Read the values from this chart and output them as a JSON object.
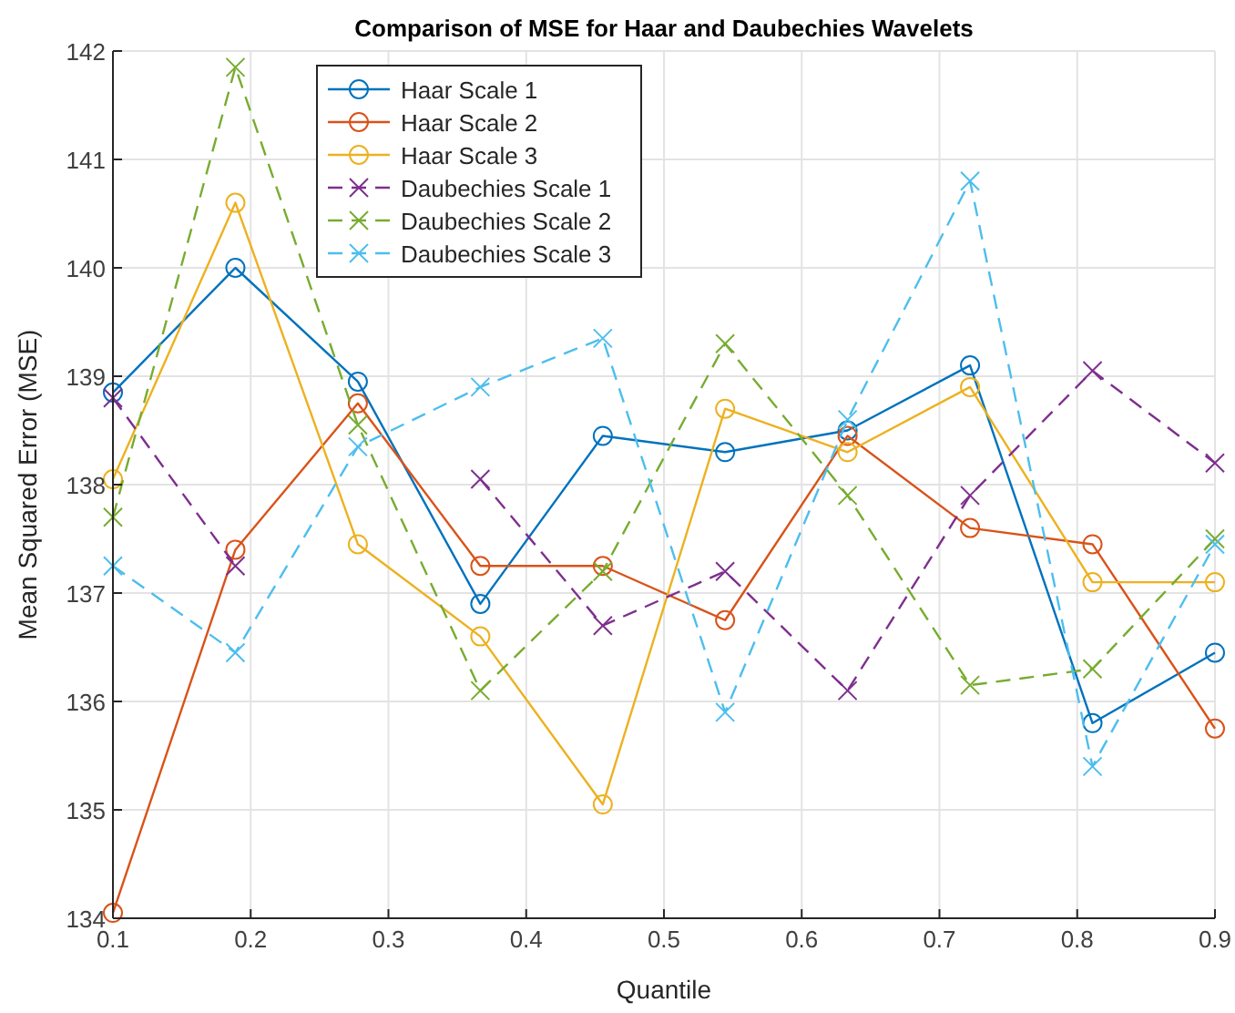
{
  "chart_data": {
    "type": "line",
    "title": "Comparison of MSE for Haar and Daubechies Wavelets",
    "xlabel": "Quantile",
    "ylabel": "Mean Squared Error (MSE)",
    "x": [
      0.1,
      0.1889,
      0.2778,
      0.3667,
      0.4556,
      0.5444,
      0.6333,
      0.7222,
      0.8111,
      0.9
    ],
    "xlim": [
      0.1,
      0.9
    ],
    "xticks": [
      0.1,
      0.2,
      0.3,
      0.4,
      0.5,
      0.6,
      0.7,
      0.8,
      0.9
    ],
    "ylim": [
      134,
      142
    ],
    "yticks": [
      134,
      135,
      136,
      137,
      138,
      139,
      140,
      141,
      142
    ],
    "grid": true,
    "legend": "top left",
    "series": [
      {
        "name": "Haar Scale 1",
        "color": "#0072bd",
        "marker": "circle",
        "line_style": "solid",
        "values": [
          138.85,
          140.0,
          138.95,
          136.9,
          138.45,
          138.3,
          138.5,
          139.1,
          135.8,
          136.45
        ]
      },
      {
        "name": "Haar Scale 2",
        "color": "#d95319",
        "marker": "circle",
        "line_style": "solid",
        "values": [
          134.05,
          137.4,
          138.75,
          137.25,
          137.25,
          136.75,
          138.45,
          137.6,
          137.45,
          135.75
        ]
      },
      {
        "name": "Haar Scale 3",
        "color": "#edb120",
        "marker": "circle",
        "line_style": "solid",
        "values": [
          138.05,
          140.6,
          137.45,
          136.6,
          135.05,
          138.7,
          138.3,
          138.9,
          137.1,
          137.1
        ]
      },
      {
        "name": "Daubechies Scale 1",
        "color": "#7e2f8e",
        "marker": "cross",
        "line_style": "dashed",
        "values": [
          138.8,
          137.25,
          null,
          138.05,
          136.7,
          137.2,
          136.1,
          137.9,
          139.05,
          138.2
        ]
      },
      {
        "name": "Daubechies Scale 2",
        "color": "#77ac30",
        "marker": "cross",
        "line_style": "dashed",
        "values": [
          137.7,
          141.85,
          138.55,
          136.1,
          137.2,
          139.3,
          137.9,
          136.15,
          136.3,
          137.5
        ]
      },
      {
        "name": "Daubechies Scale 3",
        "color": "#4dbeee",
        "marker": "cross",
        "line_style": "dashed",
        "values": [
          137.25,
          136.45,
          138.35,
          138.9,
          139.35,
          135.9,
          138.6,
          140.8,
          135.4,
          137.45
        ]
      }
    ]
  }
}
